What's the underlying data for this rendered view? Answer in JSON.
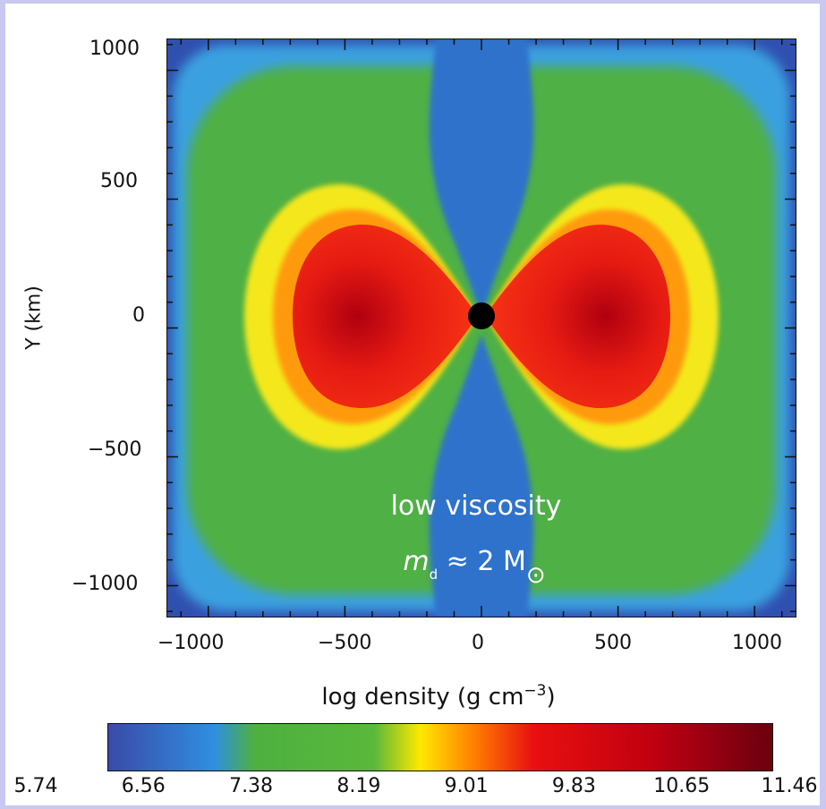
{
  "chart_data": {
    "type": "heatmap",
    "title": "",
    "xlabel": "",
    "ylabel": "Y (km)",
    "x_ticks": [
      "−1000",
      "−500",
      "0",
      "500",
      "1000"
    ],
    "y_ticks": [
      "1000",
      "500",
      "0",
      "−500",
      "−1000"
    ],
    "xlim": [
      -1150,
      1150
    ],
    "ylim": [
      -1120,
      1120
    ],
    "colorbar": {
      "title": "log density (g cm",
      "title_exponent": "−3",
      "title_close": ")",
      "tick_labels": [
        "5.74",
        "6.56",
        "7.38",
        "8.19",
        "9.01",
        "9.83",
        "10.65",
        "11.46"
      ],
      "range": [
        5.74,
        11.46
      ],
      "colors": [
        "#3a4aa8",
        "#2f8fe0",
        "#4db040",
        "#5ab83a",
        "#ffe800",
        "#ff8000",
        "#e81010",
        "#c00010",
        "#6a0010"
      ]
    },
    "annotations": [
      {
        "text": "low viscosity"
      },
      {
        "symbol": "m",
        "subscript": "d",
        "relation": "≈ 2 M",
        "solar_symbol": "⊙"
      }
    ]
  }
}
